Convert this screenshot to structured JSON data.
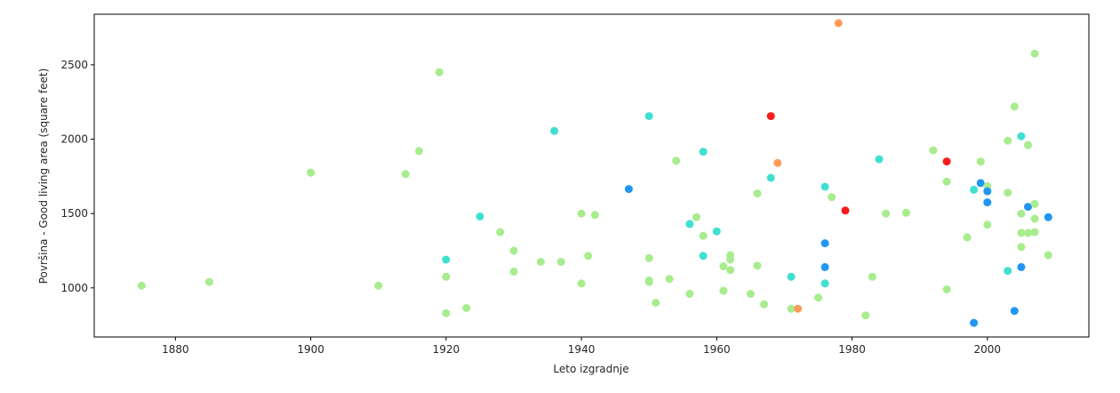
{
  "chart_data": {
    "type": "scatter",
    "title": "",
    "xlabel": "Leto izgradnje",
    "ylabel": "Površina - Good living area (square feet)",
    "xlim": [
      1868,
      2015
    ],
    "ylim": [
      670,
      2840
    ],
    "xticks": [
      1880,
      1900,
      1920,
      1940,
      1960,
      1980,
      2000
    ],
    "yticks": [
      1000,
      1500,
      2000,
      2500
    ],
    "grid": false,
    "legend": "none",
    "colors": {
      "light_green": "#a8ec8e",
      "turquoise": "#40e0d0",
      "blue": "#2196f3",
      "orange": "#ff9b5a",
      "red": "#fa1b1b"
    },
    "points": [
      {
        "x": 1875,
        "y": 1015,
        "c": "light_green"
      },
      {
        "x": 1885,
        "y": 1040,
        "c": "light_green"
      },
      {
        "x": 1900,
        "y": 1775,
        "c": "light_green"
      },
      {
        "x": 1910,
        "y": 1015,
        "c": "light_green"
      },
      {
        "x": 1914,
        "y": 1765,
        "c": "light_green"
      },
      {
        "x": 1916,
        "y": 1920,
        "c": "light_green"
      },
      {
        "x": 1919,
        "y": 2450,
        "c": "light_green"
      },
      {
        "x": 1920,
        "y": 1190,
        "c": "turquoise"
      },
      {
        "x": 1920,
        "y": 1075,
        "c": "light_green"
      },
      {
        "x": 1920,
        "y": 830,
        "c": "light_green"
      },
      {
        "x": 1923,
        "y": 865,
        "c": "light_green"
      },
      {
        "x": 1925,
        "y": 1480,
        "c": "turquoise"
      },
      {
        "x": 1928,
        "y": 1375,
        "c": "light_green"
      },
      {
        "x": 1930,
        "y": 1250,
        "c": "light_green"
      },
      {
        "x": 1930,
        "y": 1110,
        "c": "light_green"
      },
      {
        "x": 1934,
        "y": 1175,
        "c": "light_green"
      },
      {
        "x": 1936,
        "y": 2055,
        "c": "turquoise"
      },
      {
        "x": 1937,
        "y": 1175,
        "c": "light_green"
      },
      {
        "x": 1940,
        "y": 1500,
        "c": "light_green"
      },
      {
        "x": 1940,
        "y": 1030,
        "c": "light_green"
      },
      {
        "x": 1941,
        "y": 1215,
        "c": "light_green"
      },
      {
        "x": 1942,
        "y": 1490,
        "c": "light_green"
      },
      {
        "x": 1947,
        "y": 1665,
        "c": "blue"
      },
      {
        "x": 1950,
        "y": 2155,
        "c": "turquoise"
      },
      {
        "x": 1950,
        "y": 1200,
        "c": "light_green"
      },
      {
        "x": 1950,
        "y": 1050,
        "c": "light_green"
      },
      {
        "x": 1950,
        "y": 1040,
        "c": "light_green"
      },
      {
        "x": 1951,
        "y": 900,
        "c": "light_green"
      },
      {
        "x": 1953,
        "y": 1060,
        "c": "light_green"
      },
      {
        "x": 1954,
        "y": 1855,
        "c": "light_green"
      },
      {
        "x": 1956,
        "y": 1430,
        "c": "turquoise"
      },
      {
        "x": 1956,
        "y": 960,
        "c": "light_green"
      },
      {
        "x": 1957,
        "y": 1475,
        "c": "light_green"
      },
      {
        "x": 1958,
        "y": 1915,
        "c": "turquoise"
      },
      {
        "x": 1958,
        "y": 1350,
        "c": "light_green"
      },
      {
        "x": 1958,
        "y": 1215,
        "c": "turquoise"
      },
      {
        "x": 1960,
        "y": 1380,
        "c": "turquoise"
      },
      {
        "x": 1961,
        "y": 1145,
        "c": "light_green"
      },
      {
        "x": 1961,
        "y": 980,
        "c": "light_green"
      },
      {
        "x": 1962,
        "y": 1220,
        "c": "light_green"
      },
      {
        "x": 1962,
        "y": 1190,
        "c": "light_green"
      },
      {
        "x": 1962,
        "y": 1120,
        "c": "light_green"
      },
      {
        "x": 1965,
        "y": 960,
        "c": "light_green"
      },
      {
        "x": 1966,
        "y": 1635,
        "c": "light_green"
      },
      {
        "x": 1966,
        "y": 1150,
        "c": "light_green"
      },
      {
        "x": 1967,
        "y": 890,
        "c": "light_green"
      },
      {
        "x": 1968,
        "y": 2155,
        "c": "red"
      },
      {
        "x": 1968,
        "y": 1740,
        "c": "turquoise"
      },
      {
        "x": 1969,
        "y": 1840,
        "c": "orange"
      },
      {
        "x": 1971,
        "y": 1075,
        "c": "turquoise"
      },
      {
        "x": 1971,
        "y": 860,
        "c": "light_green"
      },
      {
        "x": 1972,
        "y": 860,
        "c": "orange"
      },
      {
        "x": 1975,
        "y": 935,
        "c": "light_green"
      },
      {
        "x": 1976,
        "y": 1680,
        "c": "turquoise"
      },
      {
        "x": 1976,
        "y": 1300,
        "c": "blue"
      },
      {
        "x": 1976,
        "y": 1140,
        "c": "blue"
      },
      {
        "x": 1976,
        "y": 1030,
        "c": "turquoise"
      },
      {
        "x": 1977,
        "y": 1610,
        "c": "light_green"
      },
      {
        "x": 1978,
        "y": 2780,
        "c": "orange"
      },
      {
        "x": 1979,
        "y": 1520,
        "c": "red"
      },
      {
        "x": 1982,
        "y": 815,
        "c": "light_green"
      },
      {
        "x": 1983,
        "y": 1075,
        "c": "light_green"
      },
      {
        "x": 1984,
        "y": 1865,
        "c": "turquoise"
      },
      {
        "x": 1985,
        "y": 1500,
        "c": "light_green"
      },
      {
        "x": 1988,
        "y": 1505,
        "c": "light_green"
      },
      {
        "x": 1992,
        "y": 1925,
        "c": "light_green"
      },
      {
        "x": 1994,
        "y": 1850,
        "c": "red"
      },
      {
        "x": 1994,
        "y": 1715,
        "c": "light_green"
      },
      {
        "x": 1994,
        "y": 990,
        "c": "light_green"
      },
      {
        "x": 1997,
        "y": 1340,
        "c": "light_green"
      },
      {
        "x": 1998,
        "y": 1660,
        "c": "turquoise"
      },
      {
        "x": 1998,
        "y": 765,
        "c": "blue"
      },
      {
        "x": 1999,
        "y": 1850,
        "c": "light_green"
      },
      {
        "x": 1999,
        "y": 1705,
        "c": "blue"
      },
      {
        "x": 2000,
        "y": 1685,
        "c": "light_green"
      },
      {
        "x": 2000,
        "y": 1650,
        "c": "blue"
      },
      {
        "x": 2000,
        "y": 1575,
        "c": "blue"
      },
      {
        "x": 2000,
        "y": 1425,
        "c": "light_green"
      },
      {
        "x": 2003,
        "y": 1990,
        "c": "light_green"
      },
      {
        "x": 2003,
        "y": 1640,
        "c": "light_green"
      },
      {
        "x": 2003,
        "y": 1115,
        "c": "turquoise"
      },
      {
        "x": 2004,
        "y": 2220,
        "c": "light_green"
      },
      {
        "x": 2004,
        "y": 845,
        "c": "blue"
      },
      {
        "x": 2005,
        "y": 2020,
        "c": "turquoise"
      },
      {
        "x": 2005,
        "y": 1500,
        "c": "light_green"
      },
      {
        "x": 2005,
        "y": 1370,
        "c": "light_green"
      },
      {
        "x": 2005,
        "y": 1275,
        "c": "light_green"
      },
      {
        "x": 2005,
        "y": 1140,
        "c": "blue"
      },
      {
        "x": 2006,
        "y": 1960,
        "c": "light_green"
      },
      {
        "x": 2006,
        "y": 1545,
        "c": "blue"
      },
      {
        "x": 2006,
        "y": 1370,
        "c": "light_green"
      },
      {
        "x": 2007,
        "y": 2575,
        "c": "light_green"
      },
      {
        "x": 2007,
        "y": 1565,
        "c": "light_green"
      },
      {
        "x": 2007,
        "y": 1465,
        "c": "light_green"
      },
      {
        "x": 2007,
        "y": 1375,
        "c": "light_green"
      },
      {
        "x": 2009,
        "y": 1475,
        "c": "blue"
      },
      {
        "x": 2009,
        "y": 1220,
        "c": "light_green"
      }
    ]
  }
}
